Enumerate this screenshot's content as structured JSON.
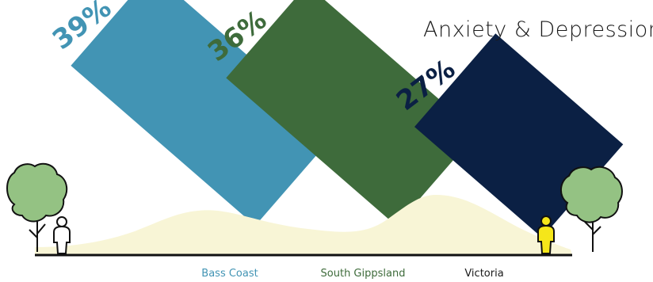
{
  "chart_data": {
    "type": "bar",
    "title": "Anxiety & Depression",
    "categories": [
      "Bass Coast",
      "South Gippsland",
      "Victoria"
    ],
    "values": [
      39,
      36,
      27
    ],
    "value_labels": [
      "39%",
      "36%",
      "27%"
    ],
    "unit": "%",
    "colors": [
      "#4294b4",
      "#3e6b3b",
      "#0b2044"
    ],
    "grid": false,
    "legend": "none"
  },
  "decoration": {
    "hill_color": "#f8f5d6",
    "tree_color": "#94c283",
    "person_left_color": "#ffffff",
    "person_right_color": "#f5e61a"
  }
}
